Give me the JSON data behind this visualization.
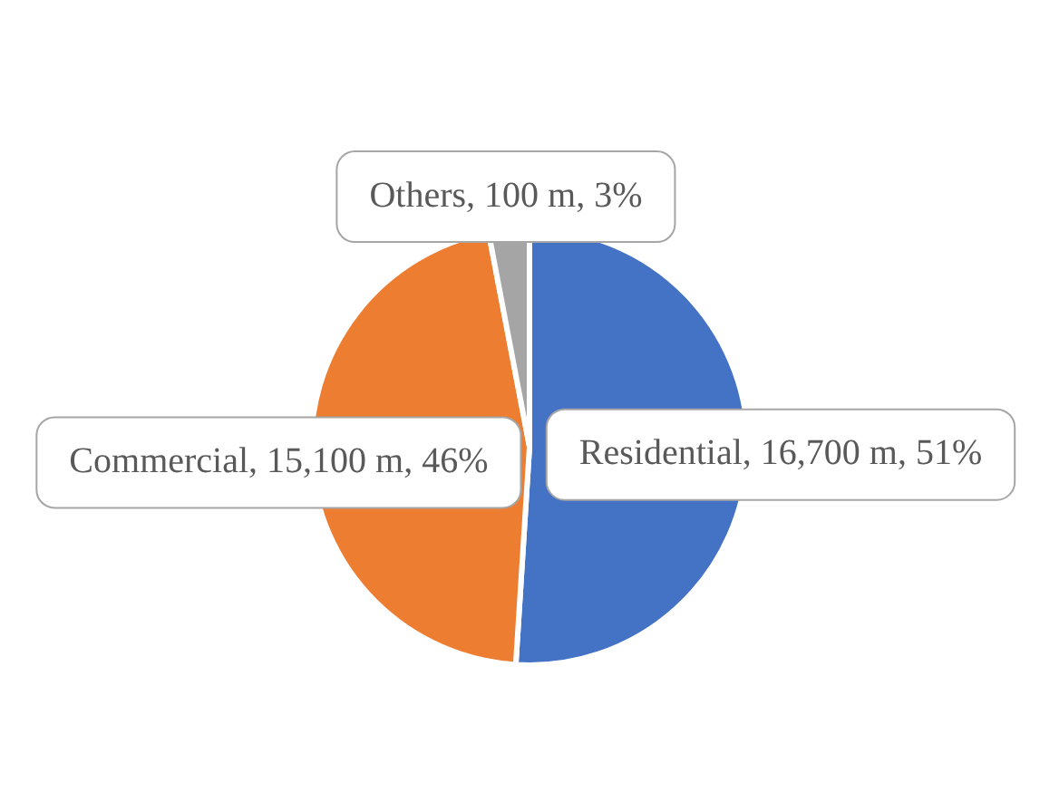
{
  "chart_data": {
    "type": "pie",
    "categories": [
      "Residential",
      "Commercial",
      "Others"
    ],
    "values": [
      51,
      46,
      3
    ],
    "value_labels": [
      "16,700 m, 51%",
      "15,100 m, 46%",
      "100 m, 3%"
    ],
    "colors": [
      "#4472c4",
      "#ed7d31",
      "#a5a5a5"
    ],
    "legend": false
  }
}
